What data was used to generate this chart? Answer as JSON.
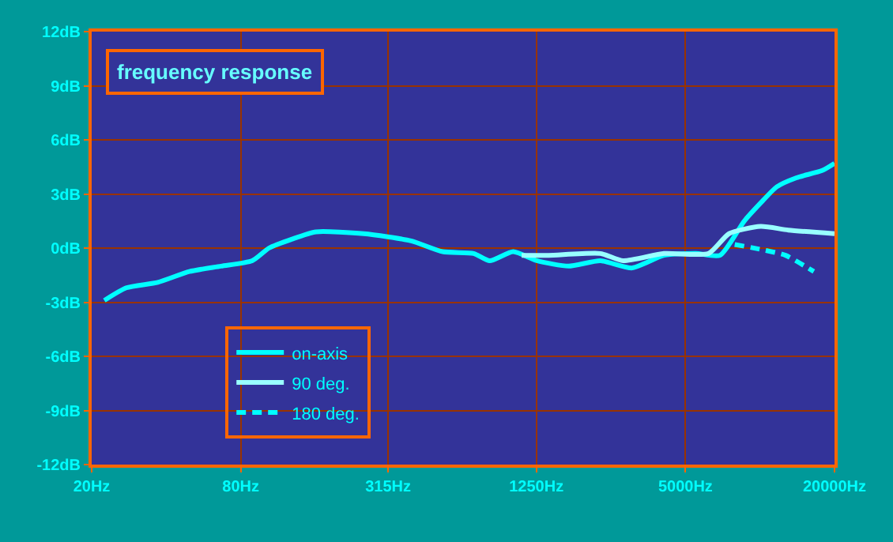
{
  "chart_data": {
    "type": "line",
    "title": "frequency response",
    "xlim": [
      20,
      20000
    ],
    "log": "x",
    "xticks": [
      {
        "value": 20,
        "label": "20Hz"
      },
      {
        "value": 80,
        "label": "80Hz"
      },
      {
        "value": 315,
        "label": "315Hz"
      },
      {
        "value": 1250,
        "label": "1250Hz"
      },
      {
        "value": 5000,
        "label": "5000Hz"
      },
      {
        "value": 20000,
        "label": "20000Hz"
      }
    ],
    "ylim": [
      -12,
      12
    ],
    "yticks": [
      {
        "value": -12,
        "label": "-12dB"
      },
      {
        "value": -9,
        "label": "-9dB"
      },
      {
        "value": -6,
        "label": "-6dB"
      },
      {
        "value": -3,
        "label": "-3dB"
      },
      {
        "value": 0,
        "label": "0dB"
      },
      {
        "value": 3,
        "label": "3dB"
      },
      {
        "value": 6,
        "label": "6dB"
      },
      {
        "value": 9,
        "label": "9dB"
      },
      {
        "value": 12,
        "label": "12dB"
      }
    ],
    "grid": true,
    "legend": "bottom left",
    "marker": "none",
    "series": [
      {
        "name": "on-axis",
        "color": "#00ffff",
        "line_style": "solid",
        "x": [
          22.5,
          27.6,
          37,
          49.6,
          66.6,
          89,
          104,
          129,
          161,
          251,
          390,
          523,
          698,
          810,
          1008,
          1255,
          1686,
          2267,
          3047,
          4096,
          5505,
          6900,
          8640,
          10060,
          11700,
          14040,
          17830,
          20000
        ],
        "values": [
          -2.9,
          -2.2,
          -1.9,
          -1.3,
          -1.0,
          -0.7,
          0,
          0.5,
          0.9,
          0.8,
          0.4,
          -0.2,
          -0.3,
          -0.7,
          -0.2,
          -0.7,
          -1.0,
          -0.7,
          -1.1,
          -0.4,
          -0.3,
          -0.4,
          1.5,
          2.5,
          3.4,
          3.9,
          4.3,
          4.7
        ]
      },
      {
        "name": "90 deg.",
        "color": "#99ffff",
        "line_style": "solid",
        "x": [
          1090,
          1400,
          2267,
          2800,
          4096,
          6200,
          7500,
          10060,
          13000,
          20000
        ],
        "values": [
          -0.4,
          -0.4,
          -0.3,
          -0.7,
          -0.3,
          -0.3,
          0.8,
          1.2,
          1.0,
          0.8
        ]
      },
      {
        "name": "180 deg.",
        "color": "#00ffff",
        "line_style": "dashed",
        "x": [
          7906,
          10300,
          12680,
          16500
        ],
        "values": [
          0.2,
          -0.1,
          -0.4,
          -1.3
        ]
      }
    ]
  }
}
